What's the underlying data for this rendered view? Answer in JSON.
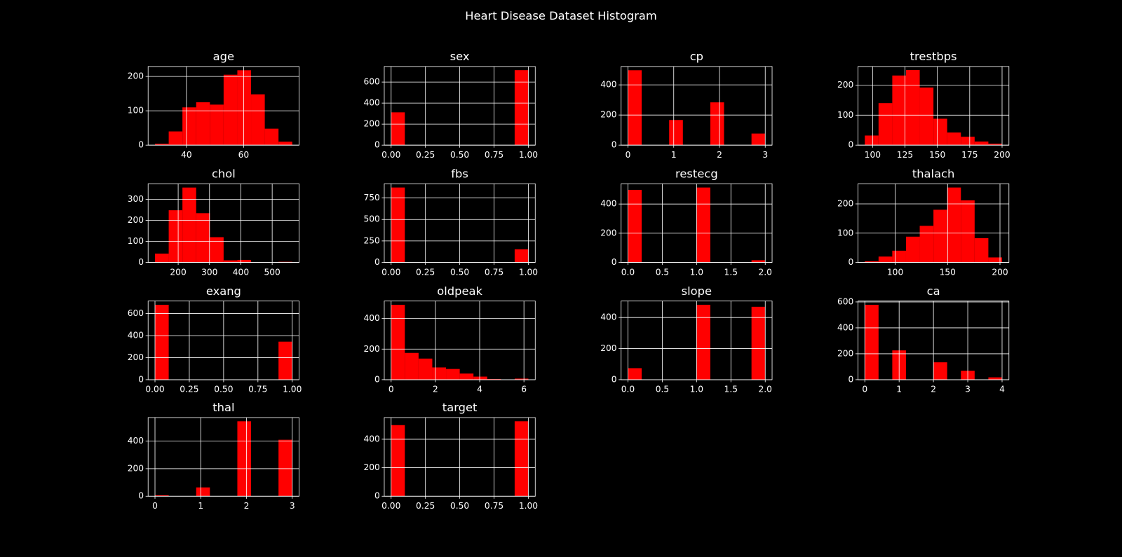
{
  "title": "Heart Disease Dataset Histogram",
  "chart_data": [
    {
      "type": "histogram",
      "title": "age",
      "color": "#ff0000",
      "grid": true,
      "bins": [
        29,
        33.8,
        38.6,
        43.4,
        48.2,
        53,
        57.8,
        62.6,
        67.4,
        72.2,
        77
      ],
      "counts": [
        4,
        40,
        110,
        125,
        118,
        205,
        218,
        148,
        48,
        10
      ],
      "xlim": [
        26.6,
        79.4
      ],
      "xticks": [
        40,
        60
      ],
      "ylim": [
        0,
        229
      ],
      "yticks": [
        0,
        100,
        200
      ]
    },
    {
      "type": "histogram",
      "title": "sex",
      "color": "#ff0000",
      "grid": true,
      "bins": [
        0,
        0.1,
        0.2,
        0.3,
        0.4,
        0.5,
        0.6,
        0.7,
        0.8,
        0.9,
        1
      ],
      "counts": [
        312,
        0,
        0,
        0,
        0,
        0,
        0,
        0,
        0,
        713
      ],
      "xlim": [
        -0.05,
        1.05
      ],
      "xticks": [
        {
          "value": 0,
          "label": "0.00"
        },
        {
          "value": 0.25,
          "label": "0.25"
        },
        {
          "value": 0.5,
          "label": "0.50"
        },
        {
          "value": 0.75,
          "label": "0.75"
        },
        {
          "value": 1,
          "label": "1.00"
        }
      ],
      "ylim": [
        0,
        748
      ],
      "yticks": [
        0,
        200,
        400,
        600
      ]
    },
    {
      "type": "histogram",
      "title": "cp",
      "color": "#ff0000",
      "grid": true,
      "bins": [
        0,
        0.3,
        0.6,
        0.9,
        1.2,
        1.5,
        1.8,
        2.1,
        2.4,
        2.7,
        3
      ],
      "counts": [
        497,
        0,
        0,
        167,
        0,
        0,
        284,
        0,
        0,
        77
      ],
      "xlim": [
        -0.15,
        3.15
      ],
      "xticks": [
        0,
        1,
        2,
        3
      ],
      "ylim": [
        0,
        522
      ],
      "yticks": [
        0,
        200,
        400
      ]
    },
    {
      "type": "histogram",
      "title": "trestbps",
      "color": "#ff0000",
      "grid": true,
      "bins": [
        94,
        104.6,
        115.2,
        125.8,
        136.4,
        147,
        157.6,
        168.2,
        178.8,
        189.4,
        200
      ],
      "counts": [
        32,
        140,
        232,
        250,
        192,
        88,
        42,
        28,
        12,
        5
      ],
      "xlim": [
        88.7,
        205.3
      ],
      "xticks": [
        100,
        125,
        150,
        175,
        200
      ],
      "ylim": [
        0,
        262
      ],
      "yticks": [
        0,
        100,
        200
      ]
    },
    {
      "type": "histogram",
      "title": "chol",
      "color": "#ff0000",
      "grid": true,
      "bins": [
        126,
        169.8,
        213.6,
        257.4,
        301.2,
        345,
        388.8,
        432.6,
        476.4,
        520.2,
        564
      ],
      "counts": [
        42,
        248,
        356,
        234,
        120,
        10,
        12,
        0,
        0,
        3
      ],
      "xlim": [
        104.1,
        585.9
      ],
      "xticks": [
        200,
        300,
        400,
        500
      ],
      "ylim": [
        0,
        374
      ],
      "yticks": [
        0,
        100,
        200,
        300
      ]
    },
    {
      "type": "histogram",
      "title": "fbs",
      "color": "#ff0000",
      "grid": true,
      "bins": [
        0,
        0.1,
        0.2,
        0.3,
        0.4,
        0.5,
        0.6,
        0.7,
        0.8,
        0.9,
        1
      ],
      "counts": [
        872,
        0,
        0,
        0,
        0,
        0,
        0,
        0,
        0,
        153
      ],
      "xlim": [
        -0.05,
        1.05
      ],
      "xticks": [
        {
          "value": 0,
          "label": "0.00"
        },
        {
          "value": 0.25,
          "label": "0.25"
        },
        {
          "value": 0.5,
          "label": "0.50"
        },
        {
          "value": 0.75,
          "label": "0.75"
        },
        {
          "value": 1,
          "label": "1.00"
        }
      ],
      "ylim": [
        0,
        915.6
      ],
      "yticks": [
        0,
        250,
        500,
        750
      ]
    },
    {
      "type": "histogram",
      "title": "restecg",
      "color": "#ff0000",
      "grid": true,
      "bins": [
        0,
        0.2,
        0.4,
        0.6,
        0.8,
        1,
        1.2,
        1.4,
        1.6,
        1.8,
        2
      ],
      "counts": [
        497,
        0,
        0,
        0,
        0,
        513,
        0,
        0,
        0,
        15
      ],
      "xlim": [
        -0.1,
        2.1
      ],
      "xticks": [
        {
          "value": 0,
          "label": "0.0"
        },
        {
          "value": 0.5,
          "label": "0.5"
        },
        {
          "value": 1,
          "label": "1.0"
        },
        {
          "value": 1.5,
          "label": "1.5"
        },
        {
          "value": 2,
          "label": "2.0"
        }
      ],
      "ylim": [
        0,
        538.7
      ],
      "yticks": [
        0,
        200,
        400
      ]
    },
    {
      "type": "histogram",
      "title": "thalach",
      "color": "#ff0000",
      "grid": true,
      "bins": [
        71,
        84.1,
        97.2,
        110.3,
        123.4,
        136.5,
        149.6,
        162.7,
        175.8,
        188.9,
        202
      ],
      "counts": [
        4,
        20,
        40,
        88,
        125,
        180,
        256,
        212,
        83,
        17
      ],
      "xlim": [
        64.45,
        208.55
      ],
      "xticks": [
        100,
        150,
        200
      ],
      "ylim": [
        0,
        268.8
      ],
      "yticks": [
        0,
        100,
        200
      ]
    },
    {
      "type": "histogram",
      "title": "exang",
      "color": "#ff0000",
      "grid": true,
      "bins": [
        0,
        0.1,
        0.2,
        0.3,
        0.4,
        0.5,
        0.6,
        0.7,
        0.8,
        0.9,
        1
      ],
      "counts": [
        680,
        0,
        0,
        0,
        0,
        0,
        0,
        0,
        0,
        345
      ],
      "xlim": [
        -0.05,
        1.05
      ],
      "xticks": [
        {
          "value": 0,
          "label": "0.00"
        },
        {
          "value": 0.25,
          "label": "0.25"
        },
        {
          "value": 0.5,
          "label": "0.50"
        },
        {
          "value": 0.75,
          "label": "0.75"
        },
        {
          "value": 1,
          "label": "1.00"
        }
      ],
      "ylim": [
        0,
        714
      ],
      "yticks": [
        0,
        200,
        400,
        600
      ]
    },
    {
      "type": "histogram",
      "title": "oldpeak",
      "color": "#ff0000",
      "grid": true,
      "bins": [
        0,
        0.62,
        1.24,
        1.86,
        2.48,
        3.1,
        3.72,
        4.34,
        4.96,
        5.58,
        6.2
      ],
      "counts": [
        490,
        175,
        138,
        80,
        70,
        40,
        20,
        4,
        0,
        7
      ],
      "xlim": [
        -0.31,
        6.51
      ],
      "xticks": [
        0,
        2,
        4,
        6
      ],
      "ylim": [
        0,
        514.5
      ],
      "yticks": [
        0,
        200,
        400
      ]
    },
    {
      "type": "histogram",
      "title": "slope",
      "color": "#ff0000",
      "grid": true,
      "bins": [
        0,
        0.2,
        0.4,
        0.6,
        0.8,
        1,
        1.2,
        1.4,
        1.6,
        1.8,
        2
      ],
      "counts": [
        74,
        0,
        0,
        0,
        0,
        482,
        0,
        0,
        0,
        469
      ],
      "xlim": [
        -0.1,
        2.1
      ],
      "xticks": [
        {
          "value": 0,
          "label": "0.0"
        },
        {
          "value": 0.5,
          "label": "0.5"
        },
        {
          "value": 1,
          "label": "1.0"
        },
        {
          "value": 1.5,
          "label": "1.5"
        },
        {
          "value": 2,
          "label": "2.0"
        }
      ],
      "ylim": [
        0,
        506
      ],
      "yticks": [
        0,
        200,
        400
      ]
    },
    {
      "type": "histogram",
      "title": "ca",
      "color": "#ff0000",
      "grid": true,
      "bins": [
        0,
        0.4,
        0.8,
        1.2,
        1.6,
        2,
        2.4,
        2.8,
        3.2,
        3.6,
        4
      ],
      "counts": [
        578,
        0,
        226,
        0,
        0,
        134,
        0,
        69,
        0,
        18
      ],
      "xlim": [
        -0.2,
        4.2
      ],
      "xticks": [
        0,
        1,
        2,
        3,
        4
      ],
      "ylim": [
        0,
        607
      ],
      "yticks": [
        0,
        200,
        400,
        600
      ]
    },
    {
      "type": "histogram",
      "title": "thal",
      "color": "#ff0000",
      "grid": true,
      "bins": [
        0,
        0.3,
        0.6,
        0.9,
        1.2,
        1.5,
        1.8,
        2.1,
        2.4,
        2.7,
        3
      ],
      "counts": [
        7,
        0,
        0,
        64,
        0,
        0,
        544,
        0,
        0,
        410
      ],
      "xlim": [
        -0.15,
        3.15
      ],
      "xticks": [
        0,
        1,
        2,
        3
      ],
      "ylim": [
        0,
        571
      ],
      "yticks": [
        0,
        200,
        400
      ]
    },
    {
      "type": "histogram",
      "title": "target",
      "color": "#ff0000",
      "grid": true,
      "bins": [
        0,
        0.1,
        0.2,
        0.3,
        0.4,
        0.5,
        0.6,
        0.7,
        0.8,
        0.9,
        1
      ],
      "counts": [
        499,
        0,
        0,
        0,
        0,
        0,
        0,
        0,
        0,
        526
      ],
      "xlim": [
        -0.05,
        1.05
      ],
      "xticks": [
        {
          "value": 0,
          "label": "0.00"
        },
        {
          "value": 0.25,
          "label": "0.25"
        },
        {
          "value": 0.5,
          "label": "0.50"
        },
        {
          "value": 0.75,
          "label": "0.75"
        },
        {
          "value": 1,
          "label": "1.00"
        }
      ],
      "ylim": [
        0,
        552
      ],
      "yticks": [
        0,
        200,
        400
      ]
    }
  ]
}
